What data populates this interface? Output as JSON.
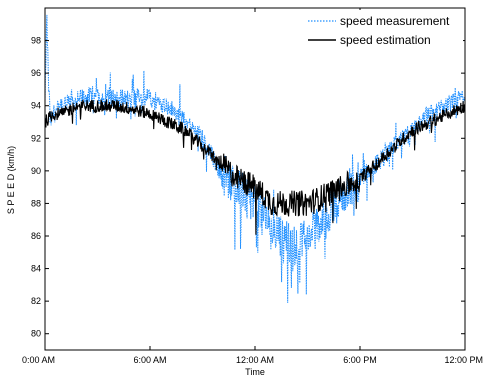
{
  "chart_data": {
    "type": "line",
    "xlabel": "Time",
    "ylabel": "S P E E D (km/h)",
    "xlim": [
      0,
      24
    ],
    "ylim": [
      79,
      100
    ],
    "x_ticks": [
      {
        "value": 0,
        "label": "0:00 AM"
      },
      {
        "value": 6,
        "label": "6:00 AM"
      },
      {
        "value": 12,
        "label": "12:00 AM"
      },
      {
        "value": 18,
        "label": "6:00 PM"
      },
      {
        "value": 24,
        "label": "12:00 PM"
      }
    ],
    "y_ticks": [
      80,
      82,
      84,
      86,
      88,
      90,
      92,
      94,
      96,
      98
    ],
    "grid": false,
    "legend_position": "top-right",
    "series": [
      {
        "name": "speed measurement",
        "color": "#1f8fff",
        "style": "dotted",
        "x": [
          0,
          0.1,
          0.2,
          0.3,
          0.5,
          1,
          1.5,
          2,
          3,
          4,
          5,
          6,
          7,
          8,
          9,
          10,
          11,
          12,
          12.5,
          13,
          13.5,
          14,
          14.5,
          15,
          15.5,
          16,
          17,
          18,
          19,
          20,
          21,
          22,
          23,
          24
        ],
        "values": [
          94,
          99.5,
          95.5,
          93,
          93.5,
          94,
          94.2,
          94.5,
          94.6,
          94.5,
          94.5,
          94.5,
          94,
          93,
          92,
          90,
          89,
          88,
          87.5,
          86.5,
          86,
          85.5,
          85.5,
          86,
          86.5,
          87,
          88.5,
          89.5,
          90.5,
          91.5,
          92.5,
          93.5,
          94,
          94.5
        ]
      },
      {
        "name": "speed estimation",
        "color": "#000000",
        "style": "solid",
        "x": [
          0,
          0.5,
          1,
          1.5,
          2,
          3,
          4,
          5,
          6,
          7,
          8,
          9,
          10,
          11,
          12,
          12.5,
          13,
          13.5,
          14,
          14.5,
          15,
          15.5,
          16,
          17,
          18,
          19,
          20,
          21,
          22,
          23,
          24
        ],
        "values": [
          93,
          93.5,
          93.5,
          93.8,
          94,
          94,
          94,
          93.8,
          93.5,
          93,
          92.5,
          91.5,
          90.5,
          89.5,
          89,
          88.5,
          88,
          88,
          88,
          88,
          88,
          88.2,
          88.5,
          89,
          89.5,
          90.5,
          91.5,
          92.5,
          93,
          93.5,
          94
        ]
      }
    ]
  }
}
